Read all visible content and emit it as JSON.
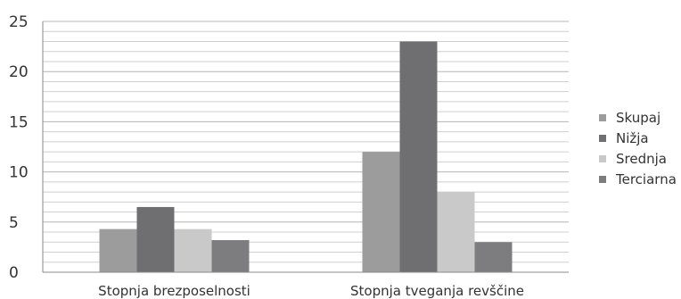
{
  "chart_data": {
    "type": "bar",
    "categories": [
      "Stopnja brezposelnosti",
      "Stopnja tveganja revščine"
    ],
    "series": [
      {
        "name": "Skupaj",
        "values": [
          4.3,
          12
        ],
        "color": "#9c9c9c"
      },
      {
        "name": "Nižja",
        "values": [
          6.5,
          23
        ],
        "color": "#6f6f71"
      },
      {
        "name": "Srednja",
        "values": [
          4.3,
          8
        ],
        "color": "#c9c9c9"
      },
      {
        "name": "Terciarna",
        "values": [
          3.2,
          3
        ],
        "color": "#7d7d7f"
      }
    ],
    "yticks": [
      "0",
      "5",
      "10",
      "15",
      "20",
      "25"
    ],
    "ylim": [
      0,
      25
    ],
    "minor_grid_step": 1,
    "grid": true,
    "legend_position": "right",
    "title": "",
    "xlabel": "",
    "ylabel": ""
  }
}
